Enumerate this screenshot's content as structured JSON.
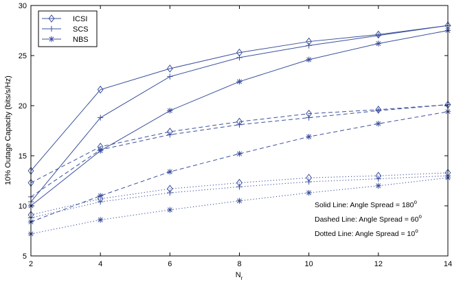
{
  "chart_data": {
    "type": "line",
    "xlabel": "N",
    "xlabel_sub": "r",
    "ylabel": "10% Outage Capacity (bits/s/Hz)",
    "xlim": [
      2,
      14
    ],
    "ylim": [
      5,
      30
    ],
    "xticks": [
      "2",
      "4",
      "6",
      "8",
      "10",
      "12",
      "14"
    ],
    "yticks": [
      "5",
      "10",
      "15",
      "20",
      "25",
      "30"
    ],
    "grid": false,
    "legend_position": "top-left",
    "line_color": "#3a4f9c",
    "x": [
      2,
      4,
      6,
      8,
      10,
      12,
      14
    ],
    "series": [
      {
        "name": "ICSI",
        "marker": "diamond",
        "style": "solid",
        "angle": 180,
        "values": [
          13.5,
          21.6,
          23.7,
          25.3,
          26.4,
          27.1,
          28.0
        ]
      },
      {
        "name": "SCS",
        "marker": "plus",
        "style": "solid",
        "angle": 180,
        "values": [
          10.4,
          18.8,
          22.9,
          24.8,
          26.0,
          27.0,
          28.0
        ]
      },
      {
        "name": "NBS",
        "marker": "asterisk",
        "style": "solid",
        "angle": 180,
        "values": [
          10.0,
          15.5,
          19.5,
          22.4,
          24.6,
          26.2,
          27.5
        ]
      },
      {
        "name": "ICSI",
        "marker": "diamond",
        "style": "dashed",
        "angle": 60,
        "values": [
          12.3,
          15.9,
          17.4,
          18.4,
          19.2,
          19.6,
          20.1
        ]
      },
      {
        "name": "SCS",
        "marker": "plus",
        "style": "dashed",
        "angle": 60,
        "values": [
          10.9,
          15.6,
          17.1,
          18.1,
          18.8,
          19.5,
          20.1
        ]
      },
      {
        "name": "NBS",
        "marker": "asterisk",
        "style": "dashed",
        "angle": 60,
        "values": [
          8.4,
          11.0,
          13.4,
          15.2,
          16.9,
          18.2,
          19.4
        ]
      },
      {
        "name": "ICSI",
        "marker": "diamond",
        "style": "dotted",
        "angle": 10,
        "values": [
          9.1,
          10.7,
          11.7,
          12.3,
          12.8,
          13.0,
          13.3
        ]
      },
      {
        "name": "SCS",
        "marker": "plus",
        "style": "dotted",
        "angle": 10,
        "values": [
          8.8,
          10.4,
          11.3,
          11.9,
          12.4,
          12.7,
          13.0
        ]
      },
      {
        "name": "NBS",
        "marker": "asterisk",
        "style": "dotted",
        "angle": 10,
        "values": [
          7.2,
          8.6,
          9.6,
          10.5,
          11.3,
          12.0,
          12.8
        ]
      }
    ],
    "legend": [
      "ICSI",
      "SCS",
      "NBS"
    ],
    "annotations": [
      {
        "text": "Solid Line: Angle Spread = 180",
        "sup": "o"
      },
      {
        "text": "Dashed Line: Angle Spread = 60",
        "sup": "o"
      },
      {
        "text": "Dotted Line: Angle Spread = 10",
        "sup": "o"
      }
    ]
  }
}
